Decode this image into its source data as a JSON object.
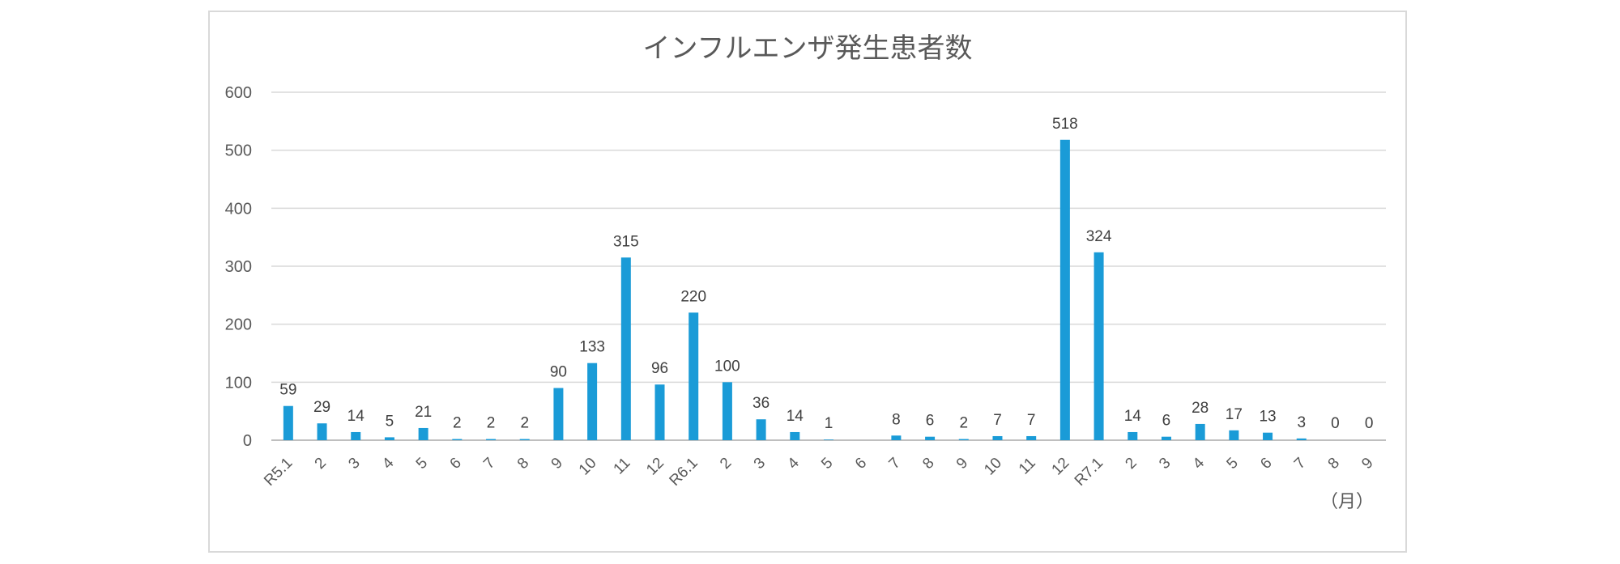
{
  "chart_data": {
    "type": "bar",
    "title": "インフルエンザ発生患者数",
    "x_unit_label": "（月）",
    "ylim": [
      0,
      600
    ],
    "yticks": [
      0,
      100,
      200,
      300,
      400,
      500,
      600
    ],
    "grid": true,
    "bar_color": "#1a9bd7",
    "categories": [
      "R5.1",
      "2",
      "3",
      "4",
      "5",
      "6",
      "7",
      "8",
      "9",
      "10",
      "11",
      "12",
      "R6.1",
      "2",
      "3",
      "4",
      "5",
      "6",
      "7",
      "8",
      "9",
      "10",
      "11",
      "12",
      "R7.1",
      "2",
      "3",
      "4",
      "5",
      "6",
      "7",
      "8",
      "9"
    ],
    "values": [
      59,
      29,
      14,
      5,
      21,
      2,
      2,
      2,
      90,
      133,
      315,
      96,
      220,
      100,
      36,
      14,
      1,
      0,
      8,
      6,
      2,
      7,
      7,
      518,
      324,
      14,
      6,
      28,
      17,
      13,
      3,
      0,
      0
    ],
    "data_labels": [
      "59",
      "29",
      "14",
      "5",
      "21",
      "2",
      "2",
      "2",
      "90",
      "133",
      "315",
      "96",
      "220",
      "100",
      "36",
      "14",
      "1",
      "",
      "8",
      "6",
      "2",
      "7",
      "7",
      "518",
      "324",
      "14",
      "6",
      "28",
      "17",
      "13",
      "3",
      "0",
      "0"
    ]
  }
}
